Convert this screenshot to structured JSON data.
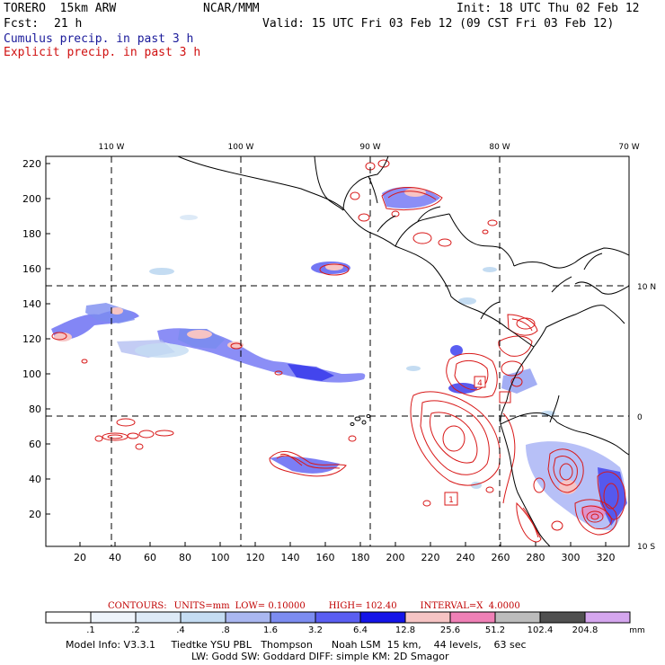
{
  "header": {
    "model_name": "TORERO  15km ARW",
    "org": "NCAR/MMM",
    "init": "Init: 18 UTC Thu 02 Feb 12",
    "fcst_label": "Fcst:",
    "fcst_value": "21 h",
    "valid": "Valid: 15 UTC Fri 03 Feb 12 (09 CST Fri 03 Feb 12)",
    "line_cumulus": "Cumulus precip. in past 3 h",
    "line_explicit": "Explicit precip. in past 3 h"
  },
  "colors": {
    "cumulus": "#1a1a9a",
    "explicit": "#d01010",
    "contour": "#d81818"
  },
  "top_longitudes": [
    "110 W",
    "100 W",
    "90 W",
    "80 W",
    "70 W"
  ],
  "right_latitudes": [
    "10 N",
    "0",
    "10 S"
  ],
  "y_ticks": [
    "220",
    "200",
    "180",
    "160",
    "140",
    "120",
    "100",
    "80",
    "60",
    "40",
    "20"
  ],
  "x_ticks": [
    "20",
    "40",
    "60",
    "80",
    "100",
    "120",
    "140",
    "160",
    "180",
    "200",
    "220",
    "240",
    "260",
    "280",
    "300",
    "320"
  ],
  "map_labels": [
    "4",
    "1"
  ],
  "contour_info": {
    "label": "CONTOURS:",
    "units": "UNITS=mm",
    "low": "LOW= 0.10000",
    "high": "HIGH= 102.40",
    "interval": "INTERVAL=X  4.0000"
  },
  "colorbar": {
    "labels": [
      ".1",
      ".2",
      ".4",
      ".8",
      "1.6",
      "3.2",
      "6.4",
      "12.8",
      "25.6",
      "51.2",
      "102.4",
      "204.8"
    ],
    "colors": [
      "#ffffff",
      "#eef4fb",
      "#ddeaf7",
      "#c4dcf2",
      "#aab7f0",
      "#7c8cf0",
      "#5a5ef2",
      "#1414e8",
      "#f6c4c4",
      "#ef80b6",
      "#bcbcbc",
      "#505050",
      "#d5a6ee"
    ],
    "unit": "mm"
  },
  "footer": {
    "line1": "Model Info: V3.3.1     Tiedtke YSU PBL   Thompson      Noah LSM  15 km,    44 levels,    63 sec",
    "line2": "LW: Godd SW: Goddard DIFF: simple KM: 2D Smagor"
  }
}
